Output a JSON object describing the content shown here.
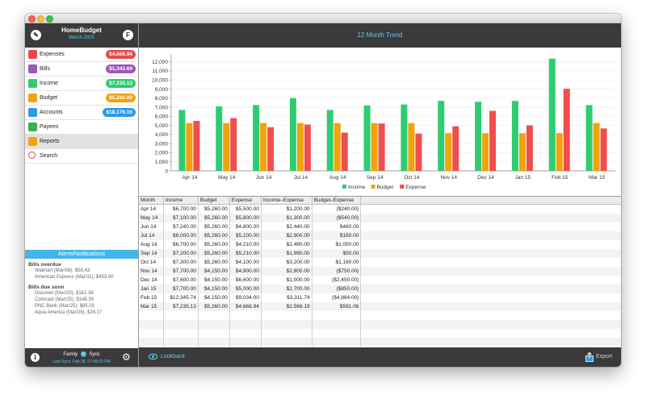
{
  "sidebar": {
    "app_title": "HomeBudget",
    "period": "March 2015",
    "left_icon": "wrench-icon",
    "right_icon": "f-circle-icon",
    "items": [
      {
        "label": "Expenses",
        "badge": "$4,668.94",
        "badge_color": "#e84a4a",
        "icon": "wallet-icon",
        "icon_color": "#e84a4a"
      },
      {
        "label": "Bills",
        "badge": "$1,343.69",
        "badge_color": "#9b59b6",
        "icon": "bills-icon",
        "icon_color": "#9b59b6"
      },
      {
        "label": "Income",
        "badge": "$7,235.13",
        "badge_color": "#2ecc71",
        "icon": "money-bag-icon",
        "icon_color": "#2ecc71"
      },
      {
        "label": "Budget",
        "badge": "$5,260.00",
        "badge_color": "#f0a30a",
        "icon": "budget-icon",
        "icon_color": "#f0a30a"
      },
      {
        "label": "Accounts",
        "badge": "$18,176.16",
        "badge_color": "#2b9ae5",
        "icon": "accounts-icon",
        "icon_color": "#2b9ae5"
      },
      {
        "label": "Payees",
        "badge": "",
        "badge_color": "",
        "icon": "payees-icon",
        "icon_color": "#34b34a"
      },
      {
        "label": "Reports",
        "badge": "",
        "badge_color": "",
        "icon": "reports-icon",
        "icon_color": "#f0a30a"
      },
      {
        "label": "Search",
        "badge": "",
        "badge_color": "",
        "icon": "search-icon",
        "icon_color": "#e84a4a"
      }
    ],
    "alerts": {
      "title": "Alerts/Notifications",
      "overdue_heading": "Bills overdue",
      "overdue": [
        "Walmart (Mar/08), $58.43",
        "American Express (Mar/11), $453.00"
      ],
      "due_heading": "Bills due soon",
      "due": [
        "Discover (Mar/20), $162.38",
        "Comcast (Mar/25), $148.35",
        "PNC Bank (Mar/25), $85.00",
        "Aqua America (Mar/26), $28.17"
      ]
    },
    "footer": {
      "family": "Family",
      "sync": "Sync",
      "last_sync": "Last Sync: Feb 28, 07:49:23 PM"
    }
  },
  "main": {
    "title": "12 Month Trend",
    "lookback": "Lookback",
    "export": "Export"
  },
  "chart_data": {
    "type": "bar",
    "categories": [
      "Apr 14",
      "May 14",
      "Jun 14",
      "Jul 14",
      "Aug 14",
      "Sep 14",
      "Oct 14",
      "Nov 14",
      "Dec 14",
      "Jan 15",
      "Feb 15",
      "Mar 15"
    ],
    "series": [
      {
        "name": "Income",
        "color": "#2ecc71",
        "values": [
          6700,
          7100,
          7240,
          8000,
          6700,
          7200,
          7300,
          7700,
          7600,
          7700,
          12345.74,
          7235.13
        ]
      },
      {
        "name": "Budget",
        "color": "#f0a30a",
        "values": [
          5260,
          5260,
          5260,
          5260,
          5260,
          5260,
          5260,
          4150,
          4150,
          4150,
          4150,
          5260
        ]
      },
      {
        "name": "Expense",
        "color": "#f04e4e",
        "values": [
          5500,
          5800,
          4800,
          5100,
          4210,
          5210,
          4100,
          4900,
          6600,
          5000,
          9034,
          4668.94
        ]
      }
    ],
    "yticks": [
      "0",
      "1,000",
      "2,000",
      "3,000",
      "4,000",
      "5,000",
      "6,000",
      "7,000",
      "8,000",
      "9,000",
      "10,000",
      "11,000",
      "12,000"
    ],
    "ylim": [
      0,
      12500
    ],
    "legend_position": "bottom",
    "grid": true
  },
  "table": {
    "columns": [
      "Month",
      "Income",
      "Budget",
      "Expense",
      "Income–Expense",
      "Budget–Expense"
    ],
    "rows": [
      [
        "Apr 14",
        "$6,700.00",
        "$5,260.00",
        "$5,500.00",
        "$1,200.00",
        "($240.00)"
      ],
      [
        "May 14",
        "$7,100.00",
        "$5,260.00",
        "$5,800.00",
        "$1,300.00",
        "($540.00)"
      ],
      [
        "Jun 14",
        "$7,240.00",
        "$5,260.00",
        "$4,800.00",
        "$2,440.00",
        "$460.00"
      ],
      [
        "Jul 14",
        "$8,000.00",
        "$5,260.00",
        "$5,100.00",
        "$2,900.00",
        "$160.00"
      ],
      [
        "Aug 14",
        "$6,700.00",
        "$5,260.00",
        "$4,210.00",
        "$2,490.00",
        "$1,050.00"
      ],
      [
        "Sep 14",
        "$7,200.00",
        "$5,260.00",
        "$5,210.00",
        "$1,990.00",
        "$50.00"
      ],
      [
        "Oct 14",
        "$7,300.00",
        "$5,260.00",
        "$4,100.00",
        "$3,200.00",
        "$1,160.00"
      ],
      [
        "Nov 14",
        "$7,700.00",
        "$4,150.00",
        "$4,900.00",
        "$2,800.00",
        "($750.00)"
      ],
      [
        "Dec 14",
        "$7,600.00",
        "$4,150.00",
        "$6,600.00",
        "$1,000.00",
        "($2,450.00)"
      ],
      [
        "Jan 15",
        "$7,700.00",
        "$4,150.00",
        "$5,000.00",
        "$2,700.00",
        "($850.00)"
      ],
      [
        "Feb 15",
        "$12,345.74",
        "$4,150.00",
        "$9,034.00",
        "$3,311.74",
        "($4,884.00)"
      ],
      [
        "Mar 15",
        "$7,235.13",
        "$5,260.00",
        "$4,668.94",
        "$2,566.19",
        "$591.06"
      ]
    ]
  }
}
